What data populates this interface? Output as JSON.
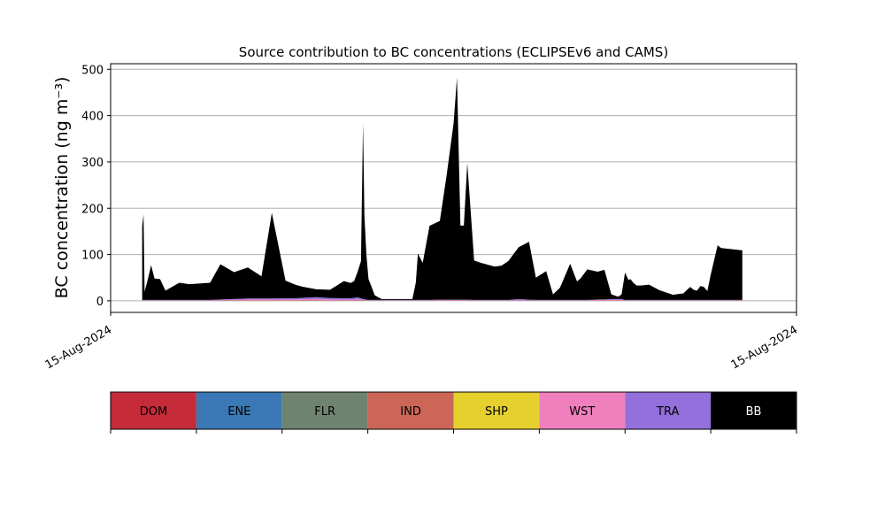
{
  "chart_data": {
    "type": "area",
    "stacked": true,
    "title": "Source contribution to BC concentrations (ECLIPSEv6 and CAMS)",
    "ylabel": "BC concentration (ng m⁻³)",
    "xlabel": "",
    "x_tick_labels": [
      "15-Aug-2024",
      "15-Aug-2024"
    ],
    "ylim": [
      -25,
      512
    ],
    "yticks": [
      0,
      100,
      200,
      300,
      400,
      500
    ],
    "grid": "horizontal",
    "x_range": [
      0,
      100
    ],
    "x": [
      4.6,
      4.8,
      4.95,
      5.4,
      5.9,
      6.4,
      7.2,
      8.0,
      10.0,
      11.5,
      14.5,
      16.0,
      18.0,
      20.0,
      22.0,
      23.5,
      25.5,
      27.0,
      28.0,
      30.0,
      32.0,
      34.0,
      35.0,
      35.5,
      36.0,
      36.5,
      36.8,
      37.0,
      37.3,
      37.6,
      38.0,
      38.5,
      39.5,
      41.0,
      42.5,
      44.0,
      44.5,
      44.8,
      45.5,
      46.5,
      48.0,
      49.0,
      50.0,
      50.5,
      51.0,
      51.5,
      52.0,
      53.0,
      54.0,
      56.0,
      57.0,
      58.0,
      59.5,
      61.0,
      62.0,
      63.5,
      64.5,
      65.5,
      67.0,
      68.0,
      68.5,
      69.5,
      71.0,
      72.0,
      73.0,
      74.0,
      74.5,
      75.0,
      75.5,
      75.8,
      76.2,
      76.7,
      77.3,
      78.5,
      80.0,
      82.0,
      83.5,
      84.5,
      85.0,
      85.5,
      86.0,
      86.5,
      87.0,
      87.5,
      88.5,
      89.0,
      92.1
    ],
    "series": [
      {
        "name": "DOM",
        "color": "#c62b3a",
        "values": [
          0,
          0,
          0,
          0,
          0,
          0,
          0,
          0,
          0,
          0,
          0,
          0,
          0,
          0,
          0,
          0,
          0,
          0,
          0,
          0,
          0,
          0,
          0,
          0,
          0,
          0,
          0,
          0,
          0,
          0,
          0,
          0,
          0,
          0,
          0,
          0,
          0,
          0,
          0,
          0,
          0,
          0,
          0,
          0,
          0,
          0,
          0,
          0,
          0,
          0,
          0,
          0,
          0,
          0,
          0,
          0,
          0,
          0,
          0,
          0,
          0,
          0,
          0,
          0,
          0,
          0,
          0,
          0,
          0,
          0,
          0,
          0,
          0,
          0,
          0,
          0,
          0,
          0,
          0,
          0,
          0,
          0,
          0,
          0,
          0,
          0,
          0
        ]
      },
      {
        "name": "ENE",
        "color": "#3a79b5",
        "values": [
          0,
          0,
          0,
          0,
          0,
          0,
          0,
          0,
          0,
          0,
          0,
          0,
          0,
          0,
          0,
          0,
          0,
          0,
          0,
          0,
          0,
          0,
          0,
          0,
          0,
          0,
          0,
          0,
          0,
          0,
          0,
          0,
          0,
          0,
          0,
          0,
          0,
          0,
          0,
          0,
          0,
          0,
          0,
          0,
          0,
          0,
          0,
          0,
          0,
          0,
          0,
          0,
          0,
          0,
          0,
          0,
          0,
          0,
          0,
          0,
          0,
          0,
          0,
          0,
          0,
          0,
          0,
          0,
          0,
          0,
          0,
          0,
          0,
          0,
          0,
          0,
          0,
          0,
          0,
          0,
          0,
          0,
          0,
          0,
          0,
          0,
          0
        ]
      },
      {
        "name": "FLR",
        "color": "#6f8371",
        "values": [
          0,
          0,
          0,
          0,
          0,
          0,
          0,
          0,
          0,
          0,
          0,
          0,
          0,
          0,
          0,
          0,
          0,
          0,
          0,
          0,
          0,
          0,
          0,
          0,
          0,
          0,
          0,
          0,
          0,
          0,
          0,
          0,
          0,
          0,
          0,
          0,
          0,
          0,
          0,
          0,
          0,
          0,
          0,
          0,
          0,
          0,
          0,
          0,
          0,
          0,
          0,
          0,
          0,
          0,
          0,
          0,
          0,
          0,
          0,
          0,
          0,
          0,
          0,
          0,
          0,
          0,
          0,
          0,
          0,
          0,
          0,
          0,
          0,
          0,
          0,
          0,
          0,
          0,
          0,
          0,
          0,
          0,
          0,
          0,
          0,
          0,
          0
        ]
      },
      {
        "name": "IND",
        "color": "#cc6757",
        "values": [
          0.5,
          0.5,
          0.5,
          0.5,
          0.5,
          0.5,
          0.5,
          0.5,
          0.5,
          0.5,
          0.5,
          0.5,
          1,
          1,
          1,
          1,
          1,
          1,
          1.5,
          1.5,
          1,
          1,
          1,
          1,
          1.5,
          1,
          1,
          1,
          1,
          0.5,
          0.5,
          0.5,
          0.5,
          0.5,
          0.5,
          0.5,
          0.5,
          0.5,
          0.5,
          0.5,
          0.5,
          0.5,
          0.5,
          0.5,
          0.5,
          0.5,
          0.5,
          0.5,
          0.5,
          0.5,
          0.5,
          0.5,
          0.5,
          0.5,
          0.5,
          0.5,
          0.5,
          0.5,
          0.5,
          0.5,
          0.5,
          0.5,
          0.5,
          0.5,
          0.5,
          0.5,
          0.5,
          0.5,
          0.5,
          0.5,
          0.5,
          0.5,
          0.5,
          0.5,
          0.5,
          0.5,
          0.5,
          0.5,
          0.5,
          0.5,
          0.5,
          0.5,
          0.5,
          0.5,
          0.5,
          0.5,
          0.5
        ]
      },
      {
        "name": "SHP",
        "color": "#e6d02e",
        "values": [
          0,
          0,
          0,
          0,
          0,
          0,
          0,
          0,
          0,
          0,
          0,
          0,
          0,
          0,
          0,
          0,
          0,
          0,
          0,
          0,
          0,
          0,
          0,
          0,
          0,
          0,
          0,
          0,
          0,
          0,
          0,
          0,
          0,
          0,
          0,
          0,
          0,
          0,
          0,
          0,
          0,
          0,
          0,
          0,
          0,
          0,
          0,
          0,
          0,
          0,
          0,
          0,
          0,
          0,
          0,
          0,
          0,
          0,
          0,
          0,
          0,
          0,
          0,
          0,
          0,
          0,
          0,
          0,
          0,
          0,
          0,
          0,
          0,
          0,
          0,
          0,
          0,
          0,
          0,
          0,
          0,
          0,
          0,
          0,
          0,
          0,
          0
        ]
      },
      {
        "name": "WST",
        "color": "#f07fbd",
        "values": [
          0.5,
          0.5,
          0.5,
          0.5,
          0.5,
          0.5,
          0.5,
          0.5,
          0.5,
          0.5,
          0.5,
          1,
          1.5,
          2,
          2,
          2,
          2,
          2,
          2,
          2.5,
          2,
          1.5,
          1.5,
          1.5,
          2,
          1.5,
          1,
          1,
          0.5,
          0.5,
          0.5,
          0.5,
          0.5,
          0.5,
          0.5,
          0.5,
          0.5,
          0.5,
          0.5,
          0.5,
          1,
          1,
          1,
          1,
          1,
          1,
          1,
          0.5,
          0.5,
          0.5,
          0.5,
          0.5,
          1,
          0.5,
          0.5,
          0.5,
          0.5,
          0.5,
          0.5,
          0.5,
          0.5,
          0.5,
          1.5,
          1.5,
          1.5,
          1.5,
          1.5,
          0.5,
          0.5,
          0.5,
          0.5,
          0.5,
          0.5,
          0.5,
          0.5,
          0.5,
          0.5,
          0.5,
          0.5,
          0.5,
          0.5,
          0.5,
          0.5,
          0.5,
          0.5,
          0.5,
          0.5
        ]
      },
      {
        "name": "TRA",
        "color": "#9370db",
        "values": [
          1,
          1,
          1,
          1,
          1,
          1,
          1,
          1,
          1,
          1,
          1,
          1.5,
          1.5,
          2,
          2,
          2,
          2.5,
          2.5,
          3,
          4,
          3,
          3,
          3,
          4,
          4,
          3,
          2,
          1.5,
          1,
          1,
          1,
          1,
          1,
          1,
          1,
          1,
          1,
          1,
          1,
          1,
          1,
          1,
          1,
          1,
          1,
          1,
          1,
          1,
          1,
          1,
          1,
          1,
          2.5,
          1.5,
          1,
          1,
          1,
          1,
          1,
          1,
          1,
          1,
          1,
          1,
          2,
          2,
          2,
          1,
          1,
          1,
          1,
          1,
          1,
          1,
          1,
          1,
          1,
          1,
          1,
          1,
          1,
          1,
          1,
          1,
          1,
          1,
          1
        ]
      },
      {
        "name": "BB",
        "color": "#000000",
        "values": [
          158,
          185,
          18,
          43,
          75,
          46,
          45,
          20,
          37,
          34,
          37,
          76,
          58,
          67,
          48,
          185,
          38,
          29,
          24,
          17,
          18,
          37,
          33,
          36,
          55,
          80,
          380,
          180,
          95,
          45,
          30,
          10,
          2,
          2,
          2,
          2,
          38,
          100,
          80,
          160,
          170,
          270,
          380,
          480,
          160,
          160,
          295,
          85,
          80,
          72,
          74,
          84,
          112,
          125,
          48,
          62,
          12,
          26,
          78,
          40,
          46,
          66,
          60,
          64,
          10,
          5,
          10,
          59,
          43,
          45,
          37,
          31,
          31,
          33,
          21,
          11,
          14,
          28,
          22,
          20,
          30,
          28,
          19,
          55,
          118,
          112,
          107
        ]
      }
    ],
    "legend": {
      "placement": "bottom",
      "labels": [
        "DOM",
        "ENE",
        "FLR",
        "IND",
        "SHP",
        "WST",
        "TRA",
        "BB"
      ]
    }
  }
}
